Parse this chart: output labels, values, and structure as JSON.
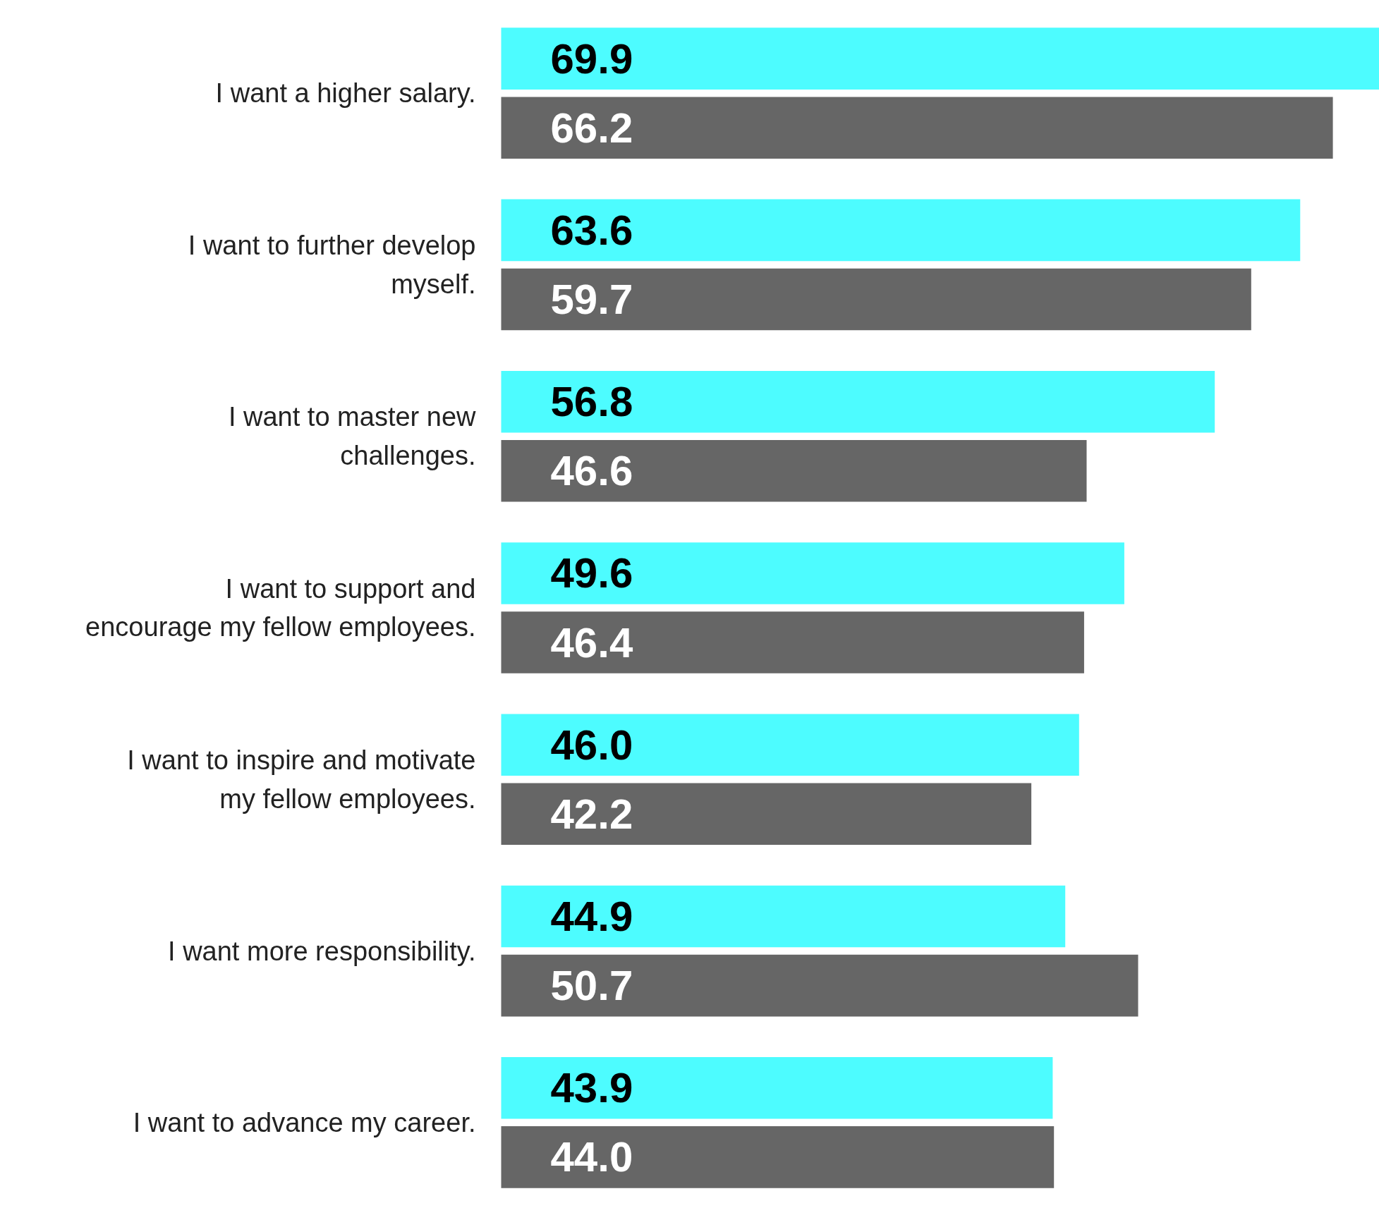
{
  "chart_data": {
    "type": "bar",
    "orientation": "horizontal",
    "data_labels": true,
    "grid": false,
    "categories": [
      "I want a higher salary.",
      "I want to further develop myself.",
      "I want to master new challenges.",
      "I want to support and encourage my fellow employees.",
      "I want to inspire and motivate my fellow employees.",
      "I want more responsibility.",
      "I want to advance my career."
    ],
    "series": [
      {
        "color": "#4dfcff",
        "values": [
          69.9,
          63.6,
          56.8,
          49.6,
          46.0,
          44.9,
          43.9
        ],
        "value_labels": [
          "69.9",
          "63.6",
          "56.8",
          "49.6",
          "46.0",
          "44.9",
          "43.9"
        ]
      },
      {
        "color": "#666666",
        "values": [
          66.2,
          59.7,
          46.6,
          46.4,
          42.2,
          50.7,
          44.0
        ],
        "value_labels": [
          "66.2",
          "59.7",
          "46.6",
          "46.4",
          "42.2",
          "50.7",
          "44.0"
        ]
      }
    ]
  }
}
